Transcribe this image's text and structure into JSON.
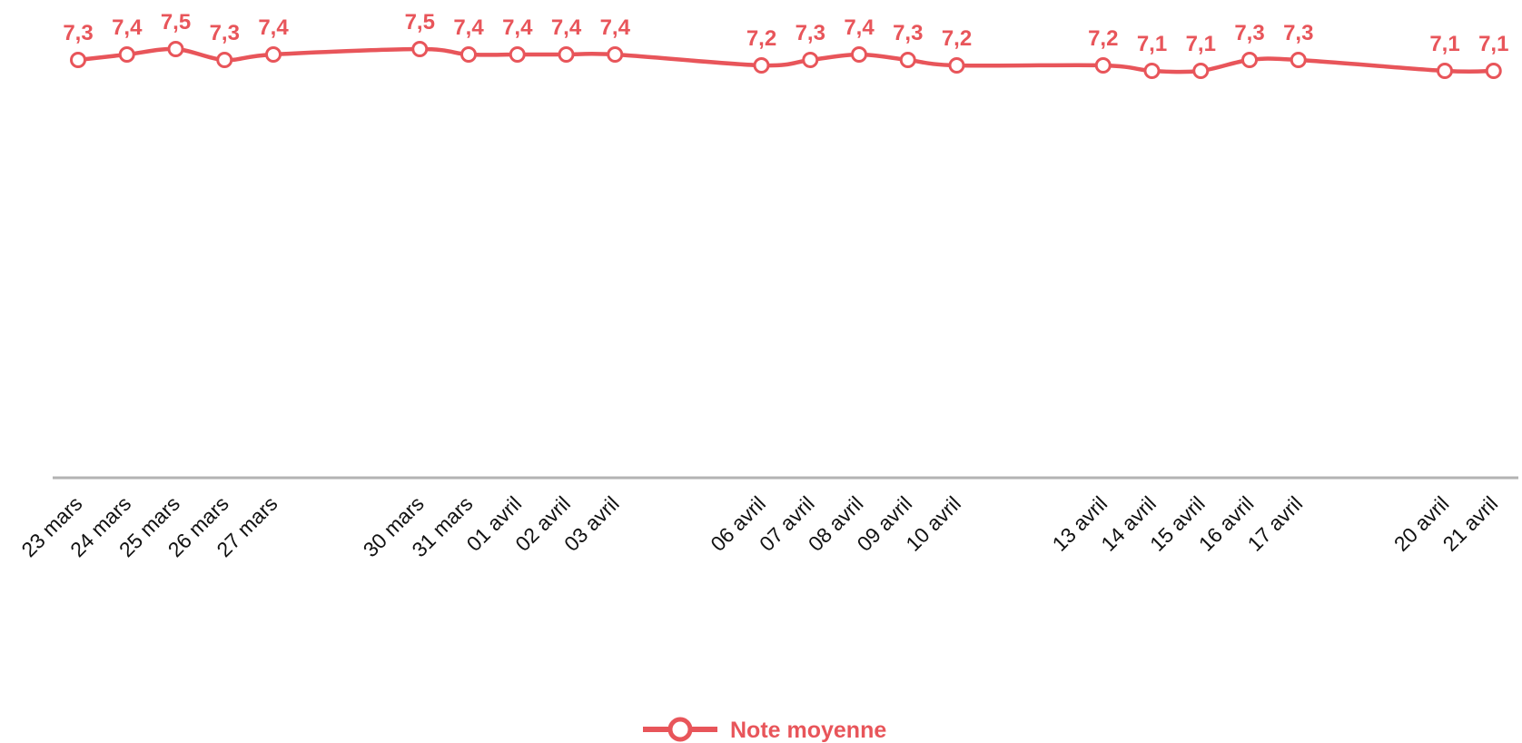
{
  "chart_data": {
    "type": "line",
    "x": [
      "23 mars",
      "24 mars",
      "25 mars",
      "26 mars",
      "27 mars",
      "30 mars",
      "31 mars",
      "01 avril",
      "02 avril",
      "03 avril",
      "06 avril",
      "07 avril",
      "08 avril",
      "09 avril",
      "10 avril",
      "13 avril",
      "14 avril",
      "15 avril",
      "16 avril",
      "17 avril",
      "20 avril",
      "21 avril"
    ],
    "x_days": [
      0,
      1,
      2,
      3,
      4,
      7,
      8,
      9,
      10,
      11,
      14,
      15,
      16,
      17,
      18,
      21,
      22,
      23,
      24,
      25,
      28,
      29
    ],
    "series": [
      {
        "name": "Note moyenne",
        "values": [
          7.3,
          7.4,
          7.5,
          7.3,
          7.4,
          7.5,
          7.4,
          7.4,
          7.4,
          7.4,
          7.2,
          7.3,
          7.4,
          7.3,
          7.2,
          7.2,
          7.1,
          7.1,
          7.3,
          7.3,
          7.1,
          7.1
        ],
        "labels": [
          "7,3",
          "7,4",
          "7,5",
          "7,3",
          "7,4",
          "7,5",
          "7,4",
          "7,4",
          "7,4",
          "7,4",
          "7,2",
          "7,3",
          "7,4",
          "7,3",
          "7,2",
          "7,2",
          "7,1",
          "7,1",
          "7,3",
          "7,3",
          "7,1",
          "7,1"
        ],
        "color": "#e8555a"
      }
    ],
    "axis_color": "#b3b3b3",
    "grid": false,
    "legend_position": "bottom-center"
  }
}
